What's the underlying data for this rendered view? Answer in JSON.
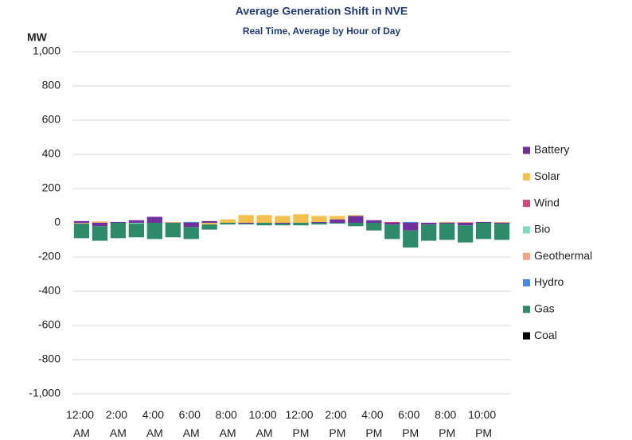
{
  "chart_data": {
    "type": "stacked-bar",
    "title": "Average Generation Shift in NVE",
    "subtitle": "Real Time,  Average by Hour of Day",
    "y_label": "MW",
    "categories": [
      "12:00 AM",
      null,
      "2:00 AM",
      null,
      "4:00 AM",
      null,
      "6:00 AM",
      null,
      "8:00 AM",
      null,
      "10:00 AM",
      null,
      "12:00 PM",
      null,
      "2:00 PM",
      null,
      "4:00 PM",
      null,
      "6:00 PM",
      null,
      "8:00 PM",
      null,
      "10:00 PM",
      null
    ],
    "series": [
      {
        "name": "Battery",
        "color": "#7030a0",
        "values": [
          10,
          -20,
          5,
          15,
          35,
          0,
          -25,
          10,
          0,
          -5,
          0,
          -5,
          0,
          5,
          20,
          40,
          15,
          -10,
          -45,
          -10,
          -5,
          -15,
          5,
          -5
        ]
      },
      {
        "name": "Solar",
        "color": "#f2c04c",
        "values": [
          0,
          3,
          0,
          0,
          0,
          0,
          0,
          -10,
          20,
          45,
          45,
          40,
          50,
          35,
          20,
          5,
          0,
          0,
          0,
          0,
          0,
          0,
          0,
          0
        ]
      },
      {
        "name": "Wind",
        "color": "#d6457a",
        "values": [
          0,
          0,
          0,
          0,
          0,
          0,
          0,
          0,
          0,
          0,
          0,
          0,
          0,
          0,
          0,
          0,
          0,
          5,
          0,
          0,
          0,
          0,
          0,
          0
        ]
      },
      {
        "name": "Bio",
        "color": "#7fdcb8",
        "values": [
          0,
          0,
          0,
          -5,
          0,
          0,
          0,
          0,
          0,
          0,
          0,
          0,
          0,
          0,
          0,
          0,
          0,
          0,
          0,
          0,
          0,
          0,
          0,
          0
        ]
      },
      {
        "name": "Geothermal",
        "color": "#f4a582",
        "values": [
          -5,
          5,
          0,
          0,
          0,
          5,
          0,
          0,
          0,
          0,
          0,
          0,
          0,
          0,
          0,
          0,
          0,
          0,
          0,
          0,
          5,
          5,
          0,
          5
        ]
      },
      {
        "name": "Hydro",
        "color": "#4a86e8",
        "values": [
          0,
          0,
          0,
          0,
          0,
          0,
          5,
          0,
          0,
          0,
          0,
          0,
          0,
          0,
          0,
          0,
          0,
          0,
          5,
          0,
          0,
          0,
          0,
          0
        ]
      },
      {
        "name": "Gas",
        "color": "#2e8b6a",
        "values": [
          -85,
          -85,
          -90,
          -80,
          -95,
          -85,
          -70,
          -30,
          -10,
          -5,
          -15,
          -10,
          -15,
          -10,
          -5,
          -20,
          -45,
          -85,
          -100,
          -95,
          -95,
          -100,
          -95,
          -95
        ]
      },
      {
        "name": "Coal",
        "color": "#000000",
        "values": [
          0,
          0,
          0,
          0,
          0,
          0,
          0,
          0,
          0,
          0,
          0,
          0,
          0,
          0,
          0,
          0,
          0,
          0,
          0,
          0,
          0,
          0,
          0,
          0
        ]
      }
    ],
    "ylim": [
      -1000,
      1000
    ],
    "yticks": [
      {
        "value": -1000,
        "label": "-1,000"
      },
      -800,
      -600,
      -400,
      -200,
      0,
      200,
      400,
      600,
      800,
      {
        "value": 1000,
        "label": "1,000"
      }
    ],
    "grid": true,
    "legend": "right"
  }
}
